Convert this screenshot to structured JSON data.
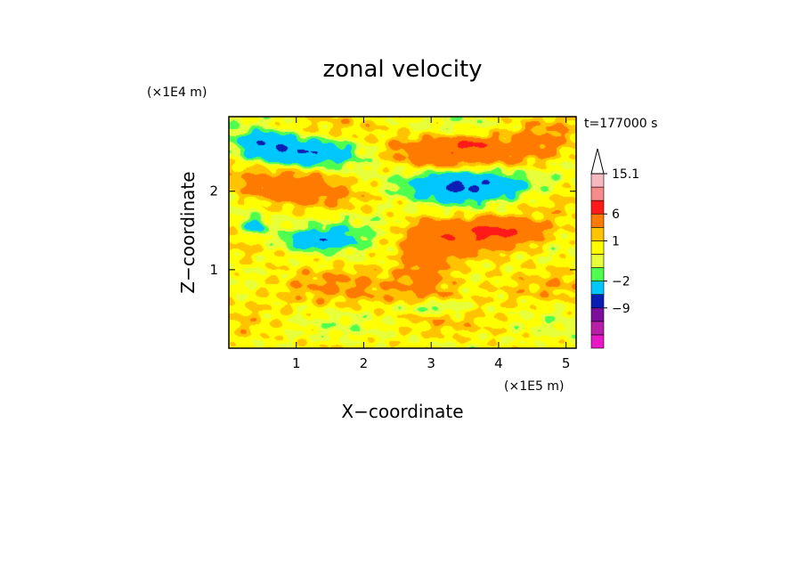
{
  "chart_data": {
    "type": "heatmap",
    "title": "zonal velocity",
    "xlabel": "X−coordinate",
    "ylabel": "Z−coordinate",
    "x_unit": "(×1E5 m)",
    "y_unit": "(×1E4 m)",
    "time_label": "t=177000 s",
    "xlim": [
      0,
      5.15
    ],
    "ylim": [
      0,
      2.95
    ],
    "x_ticks": [
      "1",
      "2",
      "3",
      "4",
      "5"
    ],
    "y_ticks": [
      "1",
      "2"
    ],
    "colorbar_labels": [
      {
        "text": "15.1",
        "level": 15.1
      },
      {
        "text": "6",
        "level": 6
      },
      {
        "text": "1",
        "level": 1
      },
      {
        "text": "−2",
        "level": -2
      },
      {
        "text": "−9",
        "level": -9
      }
    ],
    "levels": [
      -15,
      -12,
      -9,
      -6,
      -2,
      -1,
      0,
      1,
      2,
      6,
      9,
      12,
      15.1
    ],
    "colors": [
      "#e817c8",
      "#b71fa8",
      "#7d0f9e",
      "#0c1fb4",
      "#00c8ff",
      "#4fff4f",
      "#e6ff3a",
      "#ffff00",
      "#ffc300",
      "#ff7a00",
      "#ff1a1a",
      "#f78a8a",
      "#f7b8c0"
    ],
    "features": [
      {
        "x": 1.0,
        "z": 2.5,
        "rx": 0.75,
        "rz": 0.15,
        "v": -6
      },
      {
        "x": 0.5,
        "z": 2.65,
        "rx": 0.35,
        "rz": 0.1,
        "v": -4
      },
      {
        "x": 0.9,
        "z": 2.05,
        "rx": 0.75,
        "rz": 0.2,
        "v": 4
      },
      {
        "x": 3.5,
        "z": 2.08,
        "rx": 0.8,
        "rz": 0.17,
        "v": -7
      },
      {
        "x": 3.3,
        "z": 2.52,
        "rx": 0.9,
        "rz": 0.18,
        "v": 4
      },
      {
        "x": 3.6,
        "z": 2.6,
        "rx": 0.25,
        "rz": 0.06,
        "v": 4
      },
      {
        "x": 3.7,
        "z": 1.45,
        "rx": 1.0,
        "rz": 0.2,
        "v": 4
      },
      {
        "x": 4.0,
        "z": 1.5,
        "rx": 0.5,
        "rz": 0.12,
        "v": 3
      },
      {
        "x": 1.3,
        "z": 1.38,
        "rx": 0.45,
        "rz": 0.1,
        "v": -5
      },
      {
        "x": 0.4,
        "z": 1.55,
        "rx": 0.15,
        "rz": 0.1,
        "v": -4
      },
      {
        "x": 1.8,
        "z": 1.55,
        "rx": 0.8,
        "rz": 0.2,
        "v": -1.5
      },
      {
        "x": 2.95,
        "z": 1.1,
        "rx": 0.35,
        "rz": 0.45,
        "v": 3
      },
      {
        "x": 3.05,
        "z": 0.52,
        "rx": 0.45,
        "rz": 0.08,
        "v": -3
      },
      {
        "x": 2.3,
        "z": 0.75,
        "rx": 2.5,
        "rz": 0.25,
        "v": 1.2
      },
      {
        "x": 4.6,
        "z": 2.55,
        "rx": 0.5,
        "rz": 0.25,
        "v": 2.2
      }
    ]
  }
}
